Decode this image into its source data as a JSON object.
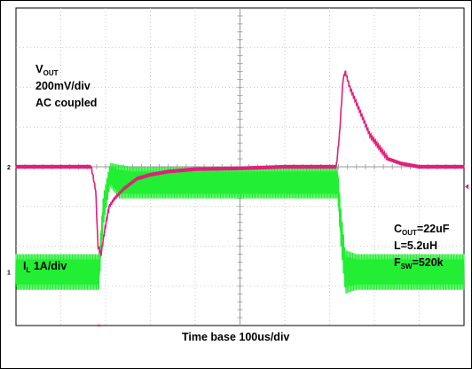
{
  "chart_data": {
    "type": "line",
    "grid": true,
    "x_axis": {
      "unit": "us",
      "per_div": 100,
      "divisions": 10,
      "range": [
        0,
        1000
      ]
    },
    "time_base_label": "Time base 100us/div",
    "series": [
      {
        "name_parts": {
          "main": "V",
          "sub": "OUT"
        },
        "scale_label": "200mV/div",
        "coupling_label": "AC coupled",
        "color": "#e0207a",
        "unit": "mV (AC, relative to steady-state)",
        "ylim": [
          -200,
          200
        ],
        "x": [
          0,
          150,
          168,
          178,
          183,
          190,
          198,
          208,
          220,
          240,
          270,
          300,
          340,
          400,
          500,
          600,
          715,
          722,
          730,
          735,
          745,
          760,
          790,
          830,
          860,
          900,
          1000
        ],
        "y": [
          0,
          0,
          0,
          -30,
          -100,
          -110,
          -80,
          -50,
          -40,
          -28,
          -15,
          -10,
          -6,
          -3,
          -2,
          0,
          0,
          40,
          110,
          120,
          100,
          80,
          40,
          10,
          4,
          0,
          0
        ]
      },
      {
        "name_parts": {
          "main": "I",
          "sub": "L",
          "rest": " 1A/div"
        },
        "color": "#22ee33",
        "unit": "A (ripple envelope)",
        "ylim": [
          -4,
          4
        ],
        "x": [
          0,
          185,
          195,
          210,
          230,
          260,
          350,
          500,
          650,
          718,
          725,
          735,
          760,
          1000
        ],
        "y_max": [
          -2.2,
          -2.2,
          -0.7,
          0.1,
          0.05,
          0.0,
          0.0,
          0.0,
          0.0,
          0.0,
          -1.0,
          -2.1,
          -2.2,
          -2.2
        ],
        "y_min": [
          -3.1,
          -3.1,
          -1.5,
          -0.5,
          -0.8,
          -0.8,
          -0.8,
          -0.8,
          -0.8,
          -0.8,
          -2.0,
          -3.2,
          -3.1,
          -3.1
        ]
      }
    ],
    "annotations": {
      "cout": {
        "main": "C",
        "sub": "OUT",
        "rest": "=22uF"
      },
      "l": "L=5.2uH",
      "fsw": {
        "main": "F",
        "sub": "SW",
        "rest": "=520k"
      }
    }
  }
}
